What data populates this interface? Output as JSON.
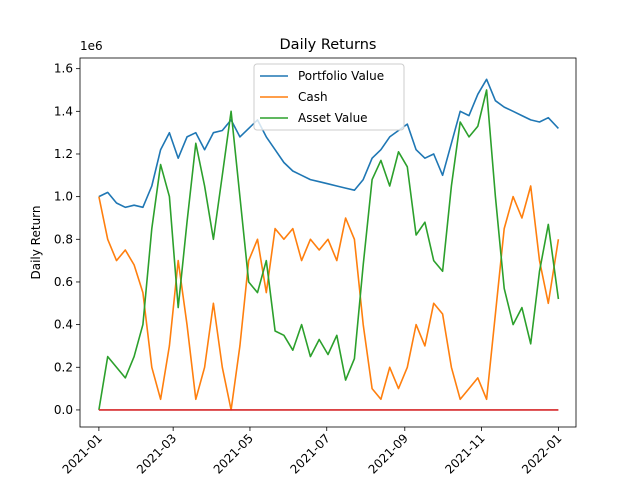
{
  "chart_data": {
    "type": "line",
    "title": "Daily Returns",
    "xlabel": "",
    "ylabel": "Daily Return",
    "y_scale_label": "1e6",
    "y_multiplier": 1000000,
    "xlim": [
      "2020-12-17",
      "2022-01-15"
    ],
    "ylim": [
      -0.08,
      1.65
    ],
    "x_ticks": [
      "2021-01",
      "2021-03",
      "2021-05",
      "2021-07",
      "2021-09",
      "2021-11",
      "2022-01"
    ],
    "x_tick_dates": [
      "2021-01-01",
      "2021-03-01",
      "2021-05-01",
      "2021-07-01",
      "2021-09-01",
      "2021-11-01",
      "2022-01-01"
    ],
    "y_ticks": [
      "0.0",
      "0.2",
      "0.4",
      "0.6",
      "0.8",
      "1.0",
      "1.2",
      "1.4",
      "1.6"
    ],
    "y_tick_values": [
      0,
      0.2,
      0.4,
      0.6,
      0.8,
      1.0,
      1.2,
      1.4,
      1.6
    ],
    "grid": false,
    "legend_position": "top-center",
    "series": [
      {
        "name": "Portfolio Value",
        "color": "#1f77b4",
        "points": [
          [
            "2021-01-01",
            1.0
          ],
          [
            "2021-01-08",
            1.02
          ],
          [
            "2021-01-15",
            0.97
          ],
          [
            "2021-01-22",
            0.95
          ],
          [
            "2021-01-29",
            0.96
          ],
          [
            "2021-02-05",
            0.95
          ],
          [
            "2021-02-12",
            1.05
          ],
          [
            "2021-02-19",
            1.22
          ],
          [
            "2021-02-26",
            1.3
          ],
          [
            "2021-03-05",
            1.18
          ],
          [
            "2021-03-12",
            1.28
          ],
          [
            "2021-03-19",
            1.3
          ],
          [
            "2021-03-26",
            1.22
          ],
          [
            "2021-04-02",
            1.3
          ],
          [
            "2021-04-09",
            1.31
          ],
          [
            "2021-04-16",
            1.36
          ],
          [
            "2021-04-23",
            1.28
          ],
          [
            "2021-04-30",
            1.32
          ],
          [
            "2021-05-07",
            1.36
          ],
          [
            "2021-05-14",
            1.28
          ],
          [
            "2021-05-21",
            1.22
          ],
          [
            "2021-05-28",
            1.16
          ],
          [
            "2021-06-04",
            1.12
          ],
          [
            "2021-06-11",
            1.1
          ],
          [
            "2021-06-18",
            1.08
          ],
          [
            "2021-06-25",
            1.07
          ],
          [
            "2021-07-02",
            1.06
          ],
          [
            "2021-07-09",
            1.05
          ],
          [
            "2021-07-16",
            1.04
          ],
          [
            "2021-07-23",
            1.03
          ],
          [
            "2021-07-30",
            1.08
          ],
          [
            "2021-08-06",
            1.18
          ],
          [
            "2021-08-13",
            1.22
          ],
          [
            "2021-08-20",
            1.28
          ],
          [
            "2021-08-27",
            1.31
          ],
          [
            "2021-09-03",
            1.34
          ],
          [
            "2021-09-10",
            1.22
          ],
          [
            "2021-09-17",
            1.18
          ],
          [
            "2021-09-24",
            1.2
          ],
          [
            "2021-10-01",
            1.1
          ],
          [
            "2021-10-08",
            1.25
          ],
          [
            "2021-10-15",
            1.4
          ],
          [
            "2021-10-22",
            1.38
          ],
          [
            "2021-10-29",
            1.48
          ],
          [
            "2021-11-05",
            1.55
          ],
          [
            "2021-11-12",
            1.45
          ],
          [
            "2021-11-19",
            1.42
          ],
          [
            "2021-11-26",
            1.4
          ],
          [
            "2021-12-03",
            1.38
          ],
          [
            "2021-12-10",
            1.36
          ],
          [
            "2021-12-17",
            1.35
          ],
          [
            "2021-12-24",
            1.37
          ],
          [
            "2022-01-01",
            1.32
          ]
        ]
      },
      {
        "name": "Cash",
        "color": "#ff7f0e",
        "points": [
          [
            "2021-01-01",
            1.0
          ],
          [
            "2021-01-08",
            0.8
          ],
          [
            "2021-01-15",
            0.7
          ],
          [
            "2021-01-22",
            0.75
          ],
          [
            "2021-01-29",
            0.68
          ],
          [
            "2021-02-05",
            0.55
          ],
          [
            "2021-02-12",
            0.2
          ],
          [
            "2021-02-19",
            0.05
          ],
          [
            "2021-02-26",
            0.3
          ],
          [
            "2021-03-05",
            0.7
          ],
          [
            "2021-03-12",
            0.4
          ],
          [
            "2021-03-19",
            0.05
          ],
          [
            "2021-03-26",
            0.2
          ],
          [
            "2021-04-02",
            0.5
          ],
          [
            "2021-04-09",
            0.2
          ],
          [
            "2021-04-16",
            0.0
          ],
          [
            "2021-04-23",
            0.3
          ],
          [
            "2021-04-30",
            0.7
          ],
          [
            "2021-05-07",
            0.8
          ],
          [
            "2021-05-14",
            0.55
          ],
          [
            "2021-05-21",
            0.85
          ],
          [
            "2021-05-28",
            0.8
          ],
          [
            "2021-06-04",
            0.85
          ],
          [
            "2021-06-11",
            0.7
          ],
          [
            "2021-06-18",
            0.8
          ],
          [
            "2021-06-25",
            0.75
          ],
          [
            "2021-07-02",
            0.8
          ],
          [
            "2021-07-09",
            0.7
          ],
          [
            "2021-07-16",
            0.9
          ],
          [
            "2021-07-23",
            0.8
          ],
          [
            "2021-07-30",
            0.4
          ],
          [
            "2021-08-06",
            0.1
          ],
          [
            "2021-08-13",
            0.05
          ],
          [
            "2021-08-20",
            0.2
          ],
          [
            "2021-08-27",
            0.1
          ],
          [
            "2021-09-03",
            0.2
          ],
          [
            "2021-09-10",
            0.4
          ],
          [
            "2021-09-17",
            0.3
          ],
          [
            "2021-09-24",
            0.5
          ],
          [
            "2021-10-01",
            0.45
          ],
          [
            "2021-10-08",
            0.2
          ],
          [
            "2021-10-15",
            0.05
          ],
          [
            "2021-10-22",
            0.1
          ],
          [
            "2021-10-29",
            0.15
          ],
          [
            "2021-11-05",
            0.05
          ],
          [
            "2021-11-12",
            0.45
          ],
          [
            "2021-11-19",
            0.85
          ],
          [
            "2021-11-26",
            1.0
          ],
          [
            "2021-12-03",
            0.9
          ],
          [
            "2021-12-10",
            1.05
          ],
          [
            "2021-12-17",
            0.7
          ],
          [
            "2021-12-24",
            0.5
          ],
          [
            "2022-01-01",
            0.8
          ]
        ]
      },
      {
        "name": "Asset Value",
        "color": "#2ca02c",
        "points": [
          [
            "2021-01-01",
            0.0
          ],
          [
            "2021-01-08",
            0.25
          ],
          [
            "2021-01-15",
            0.2
          ],
          [
            "2021-01-22",
            0.15
          ],
          [
            "2021-01-29",
            0.25
          ],
          [
            "2021-02-05",
            0.4
          ],
          [
            "2021-02-12",
            0.85
          ],
          [
            "2021-02-19",
            1.15
          ],
          [
            "2021-02-26",
            1.0
          ],
          [
            "2021-03-05",
            0.48
          ],
          [
            "2021-03-12",
            0.88
          ],
          [
            "2021-03-19",
            1.25
          ],
          [
            "2021-03-26",
            1.05
          ],
          [
            "2021-04-02",
            0.8
          ],
          [
            "2021-04-09",
            1.1
          ],
          [
            "2021-04-16",
            1.4
          ],
          [
            "2021-04-23",
            1.0
          ],
          [
            "2021-04-30",
            0.6
          ],
          [
            "2021-05-07",
            0.55
          ],
          [
            "2021-05-14",
            0.7
          ],
          [
            "2021-05-21",
            0.37
          ],
          [
            "2021-05-28",
            0.35
          ],
          [
            "2021-06-04",
            0.28
          ],
          [
            "2021-06-11",
            0.4
          ],
          [
            "2021-06-18",
            0.25
          ],
          [
            "2021-06-25",
            0.33
          ],
          [
            "2021-07-02",
            0.26
          ],
          [
            "2021-07-09",
            0.35
          ],
          [
            "2021-07-16",
            0.14
          ],
          [
            "2021-07-23",
            0.24
          ],
          [
            "2021-07-30",
            0.68
          ],
          [
            "2021-08-06",
            1.08
          ],
          [
            "2021-08-13",
            1.17
          ],
          [
            "2021-08-20",
            1.05
          ],
          [
            "2021-08-27",
            1.21
          ],
          [
            "2021-09-03",
            1.14
          ],
          [
            "2021-09-10",
            0.82
          ],
          [
            "2021-09-17",
            0.88
          ],
          [
            "2021-09-24",
            0.7
          ],
          [
            "2021-10-01",
            0.65
          ],
          [
            "2021-10-08",
            1.05
          ],
          [
            "2021-10-15",
            1.35
          ],
          [
            "2021-10-22",
            1.28
          ],
          [
            "2021-10-29",
            1.33
          ],
          [
            "2021-11-05",
            1.5
          ],
          [
            "2021-11-12",
            1.0
          ],
          [
            "2021-11-19",
            0.57
          ],
          [
            "2021-11-26",
            0.4
          ],
          [
            "2021-12-03",
            0.48
          ],
          [
            "2021-12-10",
            0.31
          ],
          [
            "2021-12-17",
            0.65
          ],
          [
            "2021-12-24",
            0.87
          ],
          [
            "2022-01-01",
            0.52
          ]
        ]
      },
      {
        "name": "",
        "color": "#d62728",
        "points": [
          [
            "2021-01-01",
            0.0
          ],
          [
            "2022-01-01",
            0.0
          ]
        ]
      }
    ]
  }
}
